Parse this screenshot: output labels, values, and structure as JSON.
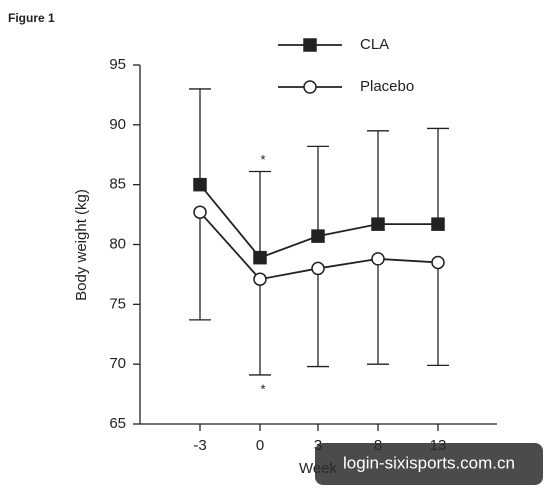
{
  "figure_label": "Figure 1",
  "chart_data": {
    "type": "line",
    "y_label": "Body weight (kg)",
    "x_label": "Week",
    "categories": [
      "-3",
      "0",
      "3",
      "8",
      "13"
    ],
    "series": [
      {
        "name": "CLA",
        "color": "#222222",
        "marker": "square",
        "marker_fill": "#222222",
        "values": [
          85.0,
          78.9,
          80.7,
          81.7,
          81.7
        ],
        "errors": [
          8.0,
          7.2,
          7.5,
          7.8,
          8.0
        ],
        "error_direction": "up"
      },
      {
        "name": "Placebo",
        "color": "#222222",
        "marker": "circle",
        "marker_fill": "#ffffff",
        "values": [
          82.7,
          77.1,
          78.0,
          78.8,
          78.5
        ],
        "errors": [
          9.0,
          8.0,
          8.2,
          8.8,
          8.6
        ],
        "error_direction": "down"
      }
    ],
    "ylim": [
      65,
      95
    ],
    "yticks": [
      65,
      70,
      75,
      80,
      85,
      90,
      95
    ],
    "annotations": [
      {
        "text": "*",
        "category": 1,
        "series": 0
      },
      {
        "text": "*",
        "category": 1,
        "series": 1
      }
    ]
  },
  "watermark": "login-sixisports.com.cn"
}
